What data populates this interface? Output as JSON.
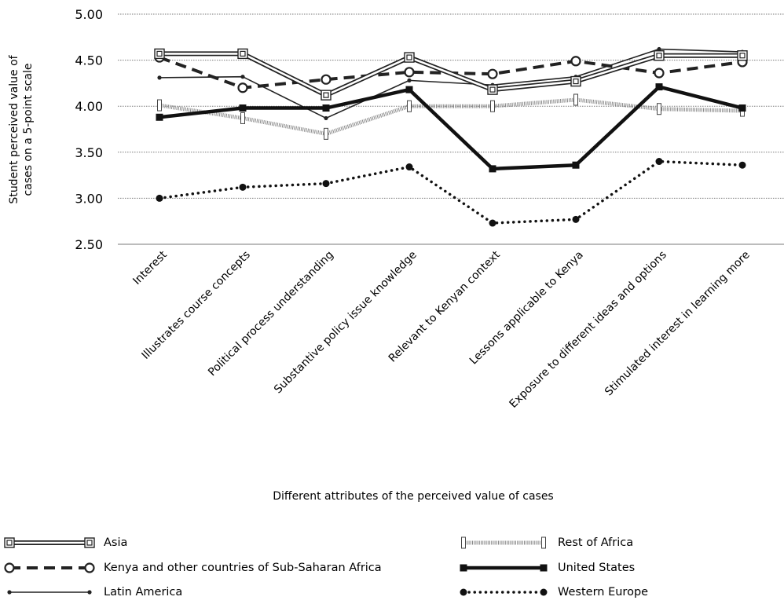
{
  "chart_data": {
    "type": "line",
    "xlabel": "Different attributes of the perceived value of cases",
    "ylabel_lines": [
      "Student perceived value of",
      "cases on a 5-point scale"
    ],
    "ylim": [
      2.5,
      5.0
    ],
    "yticks": [
      "2.50",
      "3.00",
      "3.50",
      "4.00",
      "4.50",
      "5.00"
    ],
    "ytick_values": [
      2.5,
      3.0,
      3.5,
      4.0,
      4.5,
      5.0
    ],
    "grid": true,
    "legend_position": "bottom",
    "categories": [
      "Interest",
      "Illustrates course concepts",
      "Political process understanding",
      "Substantive policy issue knowledge",
      "Relevant to Kenyan context",
      "Lessons applicable to Kenya",
      "Exposure to different ideas and options",
      "Stimulated interest in learning more"
    ],
    "series": [
      {
        "name": "Asia",
        "style": "double-line-square",
        "color": "#333333",
        "values": [
          4.57,
          4.57,
          4.12,
          4.53,
          4.18,
          4.27,
          4.55,
          4.55
        ]
      },
      {
        "name": "Kenya and other countries of Sub-Saharan Africa",
        "style": "dashed-circle",
        "color": "#222222",
        "values": [
          4.53,
          4.2,
          4.29,
          4.37,
          4.35,
          4.49,
          4.36,
          4.48
        ]
      },
      {
        "name": "Latin America",
        "style": "thin-dot",
        "color": "#222222",
        "values": [
          4.31,
          4.32,
          3.87,
          4.28,
          4.23,
          4.32,
          4.62,
          4.59
        ]
      },
      {
        "name": "Rest of Africa",
        "style": "hatched-bar",
        "color": "#888888",
        "values": [
          4.01,
          3.87,
          3.7,
          4.0,
          4.0,
          4.07,
          3.97,
          3.95
        ]
      },
      {
        "name": "United States",
        "style": "thick-square",
        "color": "#111111",
        "values": [
          3.88,
          3.98,
          3.98,
          4.18,
          3.32,
          3.36,
          4.21,
          3.98
        ]
      },
      {
        "name": "Western Europe",
        "style": "dotted-dot",
        "color": "#111111",
        "values": [
          3.0,
          3.12,
          3.16,
          3.34,
          2.73,
          2.77,
          3.4,
          3.36
        ]
      }
    ]
  }
}
